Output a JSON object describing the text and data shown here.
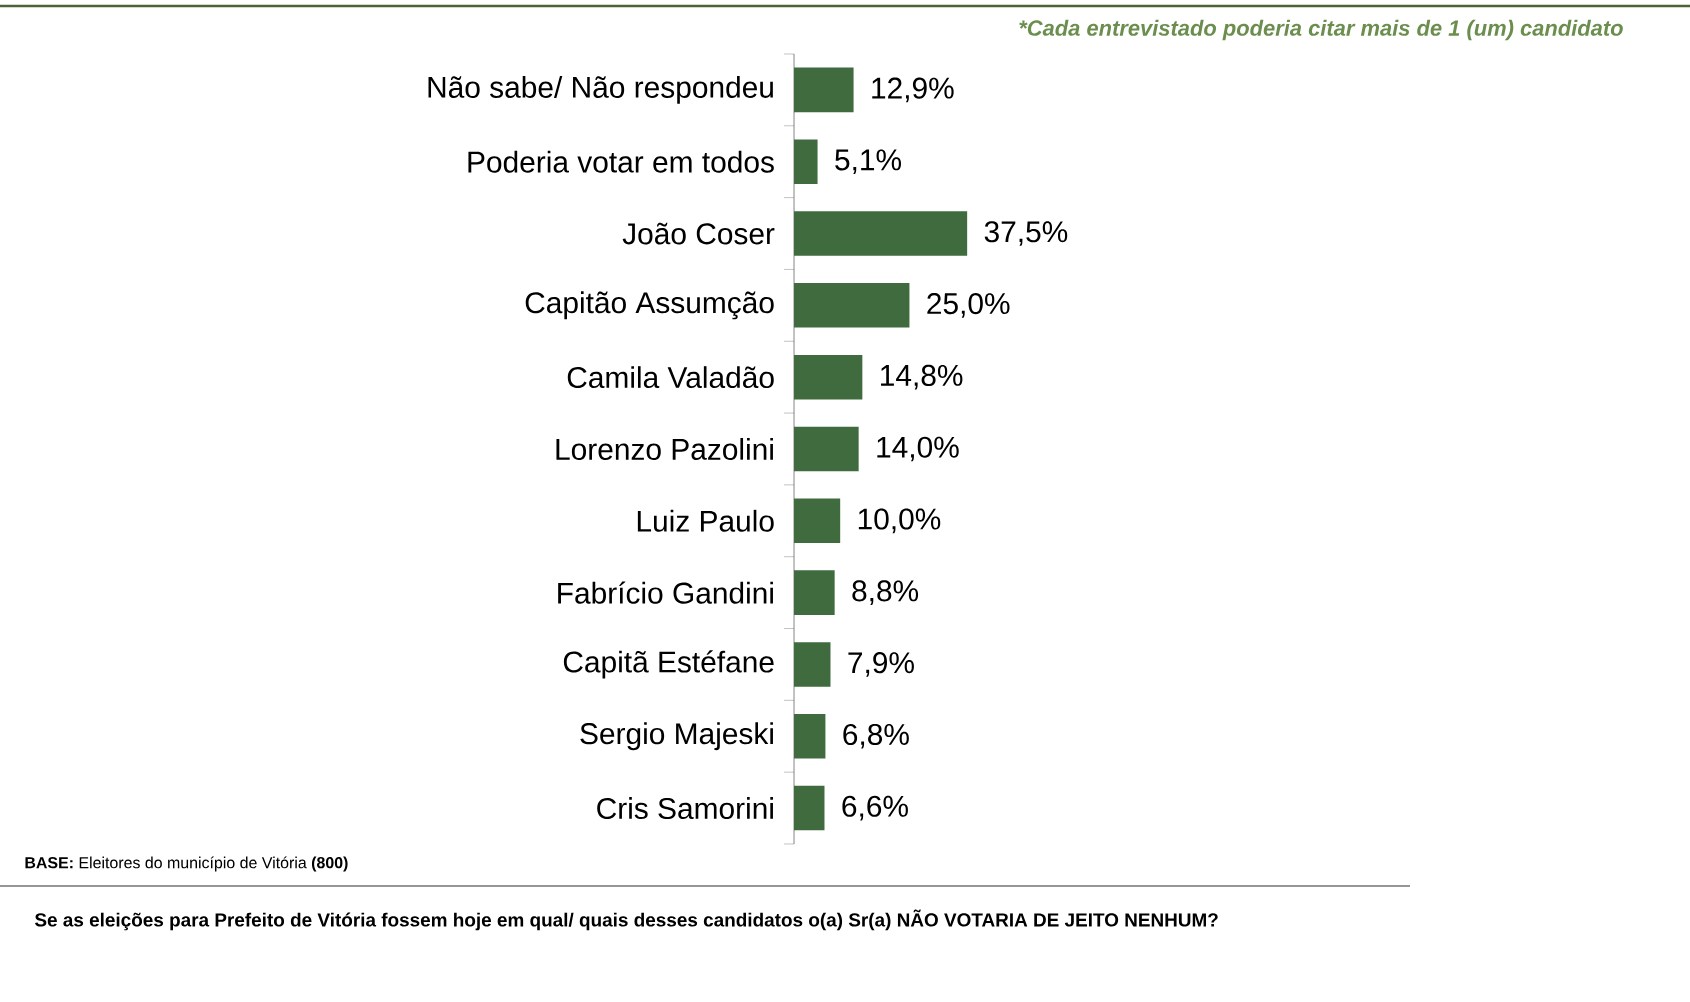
{
  "chart_data": {
    "type": "bar",
    "orientation": "horizontal",
    "relative": false,
    "categories": [
      "Não sabe/ Não respondeu",
      "Poderia votar em todos",
      "João Coser",
      "Capitão Assumção",
      "Camila Valadão",
      "Lorenzo Pazolini",
      "Luiz Paulo",
      "Fabrício Gandini",
      "Capitã Estéfane",
      "Sergio Majeski",
      "Cris Samorini"
    ],
    "values": [
      12.9,
      5.1,
      37.5,
      25.0,
      14.8,
      14.0,
      10.0,
      8.8,
      7.9,
      6.8,
      6.6
    ],
    "value_labels": [
      "12,9%",
      "5,1%",
      "37,5%",
      "25,0%",
      "14,8%",
      "14,0%",
      "10,0%",
      "8,8%",
      "7,9%",
      "6,8%",
      "6,6%"
    ],
    "color": "#3f6b3f",
    "annotations": [
      "*Cada entrevistado poderia citar mais de 1 (um) candidato",
      "**BASE:** Eleitores do município de Vitória **(800)**",
      "Se as eleições para Prefeito de Vitória fossem hoje em qual/ quais desses candidatos o(a) Sr(a) NÃO VOTARIA DE JEITO NENHUM?"
    ]
  }
}
